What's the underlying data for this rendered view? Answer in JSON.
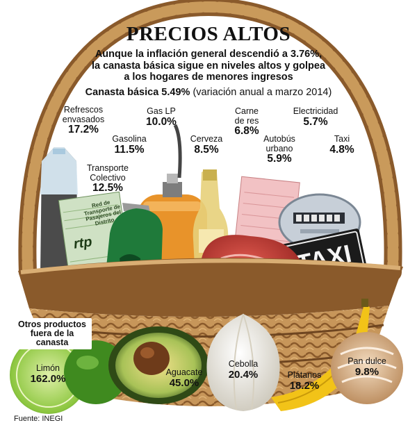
{
  "header": {
    "title": "PRECIOS ALTOS",
    "subtitle_lines": [
      "Aunque la inflación general descendió a 3.76%,",
      "la canasta básica sigue en niveles altos y golpea",
      "a los hogares de menores ingresos"
    ],
    "canasta_label": "Canasta básica 5.49%",
    "canasta_note": "(variación anual a marzo 2014)"
  },
  "basket_items": [
    {
      "label": "Refrescos envasados",
      "value": "17.2%",
      "icon": "soda-bottle-icon"
    },
    {
      "label": "Gas LP",
      "value": "10.0%",
      "icon": "gas-tank-icon"
    },
    {
      "label": "Carne de res",
      "value": "6.8%",
      "icon": "beef-steak-icon"
    },
    {
      "label": "Electricidad",
      "value": "5.7%",
      "icon": "electric-meter-icon"
    },
    {
      "label": "Gasolina",
      "value": "11.5%",
      "icon": "fuel-nozzle-icon"
    },
    {
      "label": "Cerveza",
      "value": "8.5%",
      "icon": "beer-bottle-icon"
    },
    {
      "label": "Autobús urbano",
      "value": "5.9%",
      "icon": "bus-ticket-icon"
    },
    {
      "label": "Taxi",
      "value": "4.8%",
      "icon": "taxi-sign-icon"
    },
    {
      "label": "Transporte Colectivo",
      "value": "12.5%",
      "icon": "transit-ticket-icon"
    }
  ],
  "outside_label": "Otros productos fuera de la canasta",
  "outside_items": [
    {
      "label": "Limón",
      "value": "162.0%",
      "icon": "lime-icon"
    },
    {
      "label": "Aguacate",
      "value": "45.0%",
      "icon": "avocado-icon"
    },
    {
      "label": "Cebolla",
      "value": "20.4%",
      "icon": "onion-icon"
    },
    {
      "label": "Plátanos",
      "value": "18.2%",
      "icon": "banana-icon"
    },
    {
      "label": "Pan dulce",
      "value": "9.8%",
      "icon": "sweet-bread-icon"
    }
  ],
  "props": {
    "ticket_rtp_text": "Red de Transporte de Pasajeros del Distrito",
    "ticket_rtp_logo": "rtp",
    "taxi_sign_text": "TAXI"
  },
  "source": "Fuente: INEGI",
  "colors": {
    "basket_light": "#c99a5b",
    "basket_dark": "#8a5a2b",
    "fuel_green": "#1f7a3a",
    "gas_orange": "#e8932a",
    "meat_red": "#c23b36",
    "banana_yellow": "#f2c318"
  }
}
